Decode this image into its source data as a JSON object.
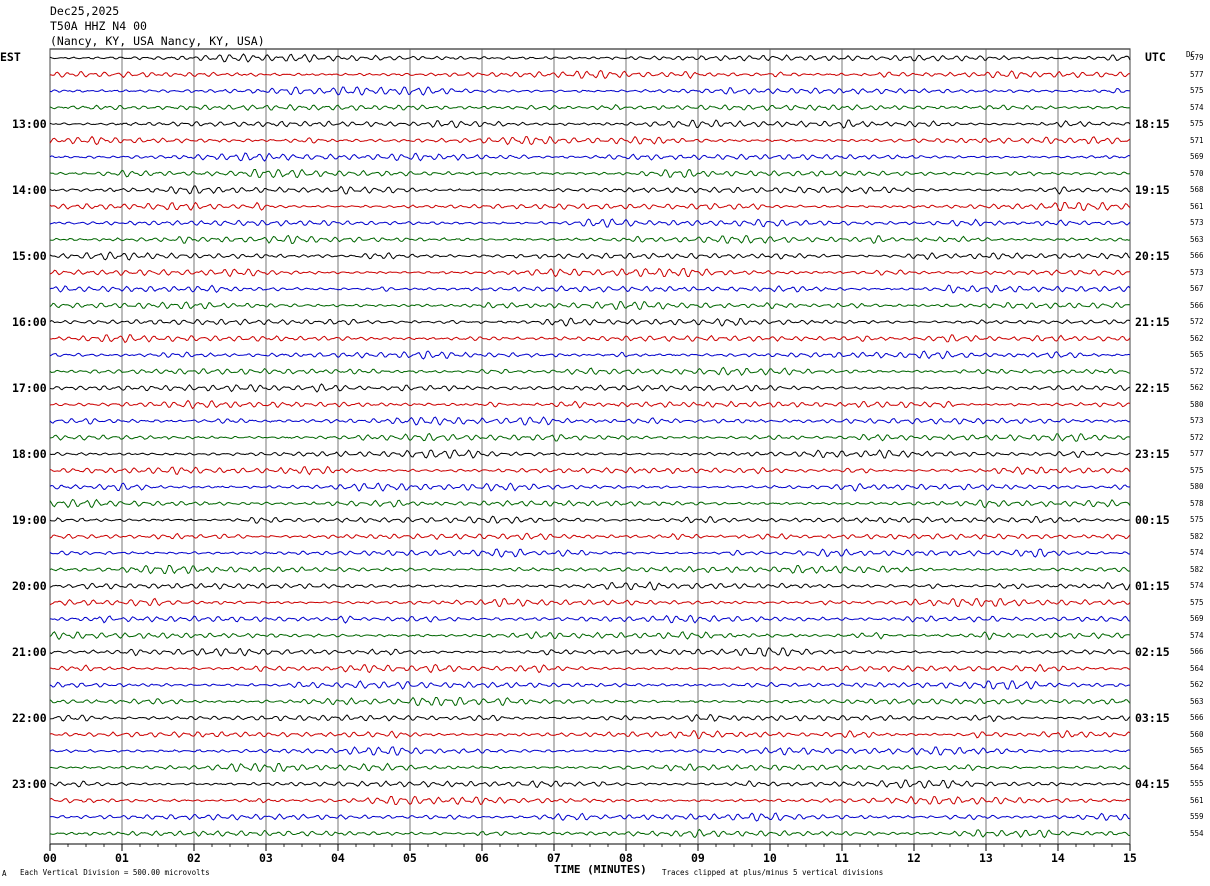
{
  "header": {
    "date": "Dec25,2025",
    "station": "T50A HHZ N4 00",
    "location": "(Nancy, KY, USA Nancy, KY, USA)"
  },
  "left_tz": "EST",
  "right_tz": "UTC",
  "dc_header": "DC",
  "footer": {
    "scale": "Each Vertical Division =  500.00 microvolts",
    "clip": "Traces clipped at plus/minus 5 vertical divisions",
    "mark": "A"
  },
  "chart_data": {
    "type": "line",
    "title": "",
    "xlabel": "TIME (MINUTES)",
    "xlim": [
      0,
      15
    ],
    "x_ticks": [
      "00",
      "01",
      "02",
      "03",
      "04",
      "05",
      "06",
      "07",
      "08",
      "09",
      "10",
      "11",
      "12",
      "13",
      "14",
      "15"
    ],
    "y_labels_left": [
      "13:00",
      "14:00",
      "15:00",
      "16:00",
      "17:00",
      "18:00",
      "19:00",
      "20:00",
      "21:00",
      "22:00",
      "23:00"
    ],
    "y_labels_right": [
      "18:15",
      "19:15",
      "20:15",
      "21:15",
      "22:15",
      "23:15",
      "00:15",
      "01:15",
      "02:15",
      "03:15",
      "04:15"
    ],
    "trace_colors": [
      "#000000",
      "#cc0000",
      "#0000cc",
      "#006600"
    ],
    "trace_dc_values": [
      "579",
      "577",
      "575",
      "574",
      "575",
      "571",
      "569",
      "570",
      "568",
      "561",
      "573",
      "563",
      "566",
      "573",
      "567",
      "566",
      "572",
      "562",
      "565",
      "572",
      "562",
      "580",
      "573",
      "572",
      "577",
      "575",
      "580",
      "578",
      "575",
      "582",
      "574",
      "582",
      "574",
      "575",
      "569",
      "574",
      "566",
      "564",
      "562",
      "563",
      "566",
      "560",
      "565",
      "564",
      "555",
      "561",
      "559",
      "554"
    ]
  }
}
